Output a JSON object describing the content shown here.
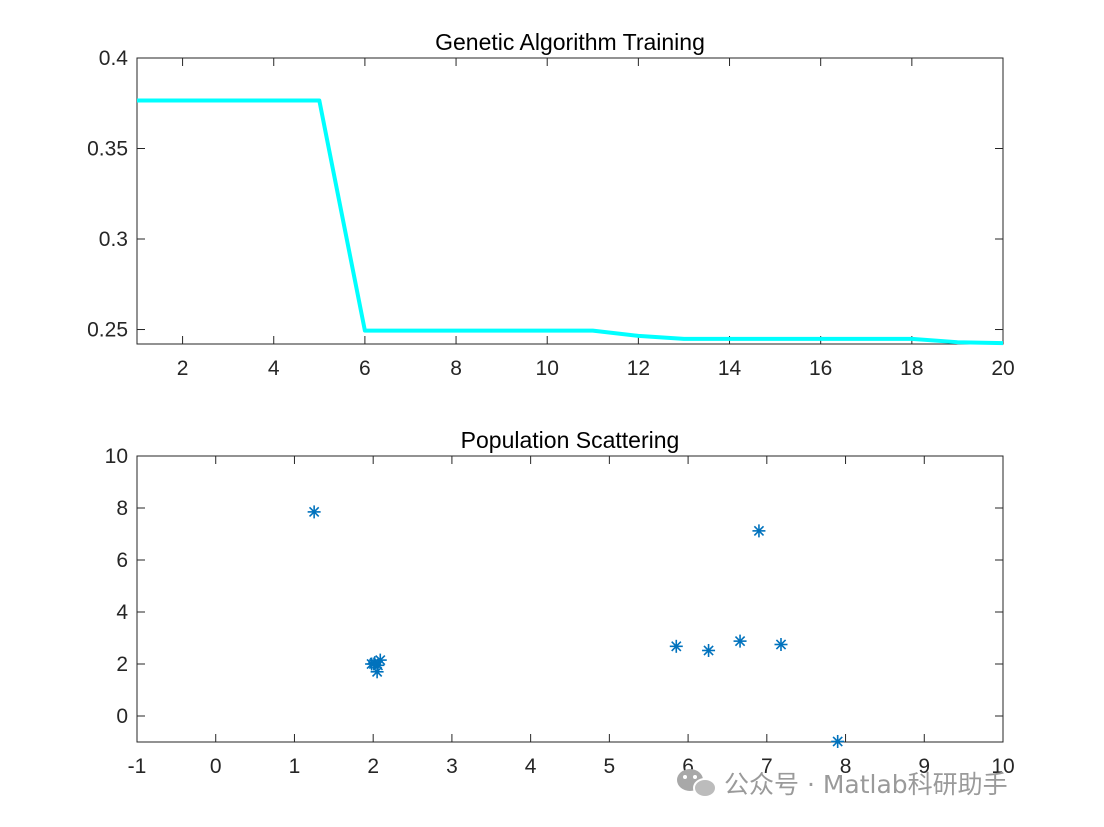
{
  "chart_data": [
    {
      "type": "line",
      "title": "Genetic Algorithm Training",
      "xlabel": "",
      "ylabel": "",
      "xlim": [
        1,
        20
      ],
      "ylim": [
        0.242,
        0.4
      ],
      "x_ticks": [
        2,
        4,
        6,
        8,
        10,
        12,
        14,
        16,
        18,
        20
      ],
      "y_ticks": [
        0.25,
        0.3,
        0.35,
        0.4
      ],
      "x_tick_labels": [
        "2",
        "4",
        "6",
        "8",
        "10",
        "12",
        "14",
        "16",
        "18",
        "20"
      ],
      "y_tick_labels": [
        "0.25",
        "0.3",
        "0.35",
        "0.4"
      ],
      "grid": false,
      "series": [
        {
          "color": "#00FFFF",
          "x": [
            1,
            2,
            3,
            4,
            5,
            6,
            7,
            8,
            9,
            10,
            11,
            12,
            13,
            14,
            15,
            16,
            17,
            18,
            19,
            20
          ],
          "y": [
            0.3765,
            0.3765,
            0.3765,
            0.3765,
            0.3765,
            0.2494,
            0.2494,
            0.2494,
            0.2494,
            0.2494,
            0.2494,
            0.2465,
            0.2448,
            0.2448,
            0.2448,
            0.2448,
            0.2448,
            0.2448,
            0.243,
            0.2425
          ]
        }
      ]
    },
    {
      "type": "scatter",
      "title": "Population Scattering",
      "xlabel": "",
      "ylabel": "",
      "xlim": [
        -1,
        10
      ],
      "ylim": [
        -1,
        10
      ],
      "x_ticks": [
        -1,
        0,
        1,
        2,
        3,
        4,
        5,
        6,
        7,
        8,
        9,
        10
      ],
      "y_ticks": [
        0,
        2,
        4,
        6,
        8,
        10
      ],
      "x_tick_labels": [
        "-1",
        "0",
        "1",
        "2",
        "3",
        "4",
        "5",
        "6",
        "7",
        "8",
        "9",
        "10"
      ],
      "y_tick_labels": [
        "0",
        "2",
        "4",
        "6",
        "8",
        "10"
      ],
      "grid": false,
      "marker": "asterisk",
      "series": [
        {
          "color": "#0072BD",
          "x": [
            1.25,
            1.98,
            2.02,
            2.06,
            2.09,
            2.05,
            2.01,
            5.85,
            6.26,
            6.66,
            6.9,
            7.18,
            7.9
          ],
          "y": [
            7.85,
            2.0,
            2.05,
            1.95,
            2.15,
            1.7,
            2.0,
            2.68,
            2.52,
            2.88,
            7.12,
            2.75,
            -0.98
          ]
        }
      ]
    }
  ],
  "watermark": {
    "icon": "wechat-icon",
    "text": "公众号 · Matlab科研助手"
  }
}
